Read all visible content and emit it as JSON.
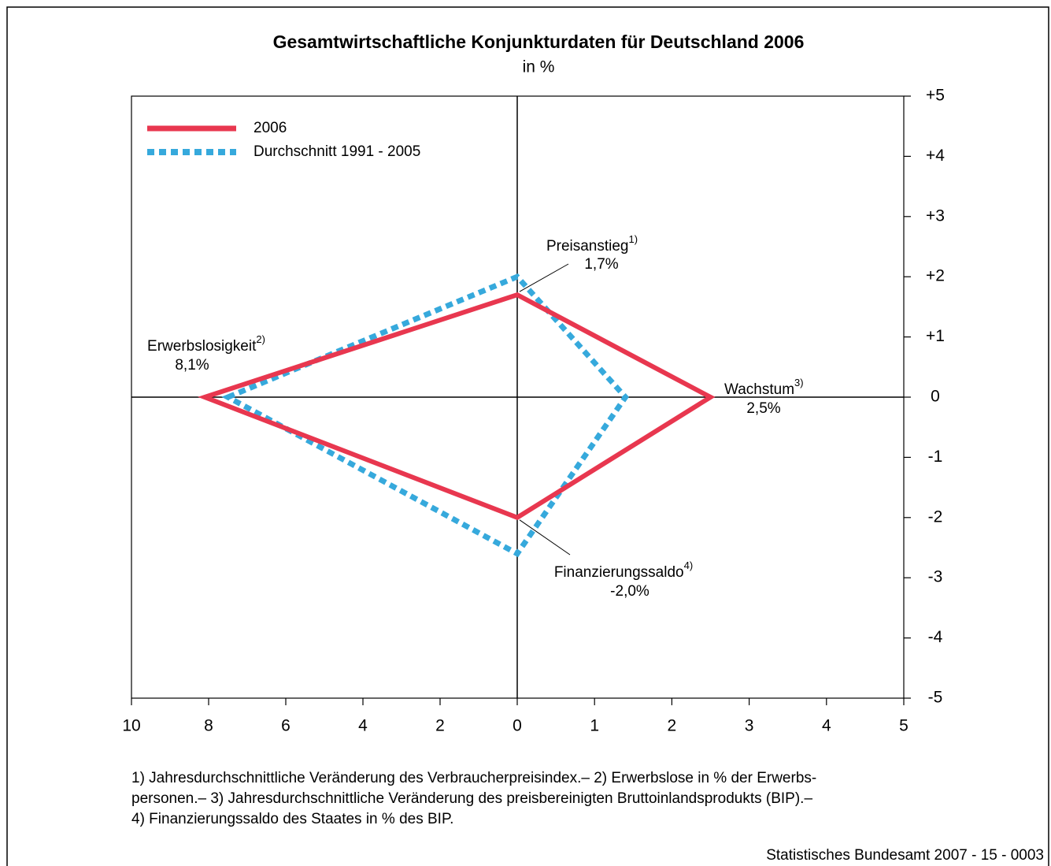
{
  "chart_data": {
    "type": "diamond",
    "title": "Gesamtwirtschaftliche Konjunkturdaten für Deutschland 2006",
    "subtitle": "in %",
    "categories": [
      "Erwerbslosigkeit",
      "Preisanstieg",
      "Wachstum",
      "Finanzierungssaldo"
    ],
    "category_notes": [
      "2)",
      "1)",
      "3)",
      "4)"
    ],
    "series": [
      {
        "name": "2006",
        "color": "#e8374f",
        "style": "solid",
        "values": [
          8.1,
          1.7,
          2.5,
          -2.0
        ],
        "value_labels": [
          "8,1%",
          "1,7%",
          "2,5%",
          "-2,0%"
        ]
      },
      {
        "name": "Durchschnitt 1991 - 2005",
        "color": "#36a9dc",
        "style": "dotted",
        "values": [
          7.5,
          2.0,
          1.4,
          -2.6
        ]
      }
    ],
    "x_left": {
      "lim": [
        10,
        0
      ],
      "ticks": [
        10,
        8,
        6,
        4,
        2,
        0
      ]
    },
    "x_right": {
      "lim": [
        0,
        5
      ],
      "ticks": [
        1,
        2,
        3,
        4,
        5
      ]
    },
    "ylim": [
      -5,
      5
    ],
    "yticks": [
      {
        "value": 5,
        "label": "+5"
      },
      {
        "value": 4,
        "label": "+4"
      },
      {
        "value": 3,
        "label": "+3"
      },
      {
        "value": 2,
        "label": "+2"
      },
      {
        "value": 1,
        "label": "+1"
      },
      0,
      -1,
      -2,
      -3,
      -4,
      -5
    ],
    "footnotes": [
      "1) Jahresdurchschnittliche Veränderung des Verbraucherpreisindex.– 2) Erwerbslose in % der Erwerbs-",
      "personen.– 3) Jahresdurchschnittliche Veränderung des preisbereinigten Bruttoinlandsprodukts (BIP).–",
      "4) Finanzierungssaldo des Staates in % des BIP."
    ],
    "source": "Statistisches Bundesamt 2007 - 15 - 0003"
  }
}
